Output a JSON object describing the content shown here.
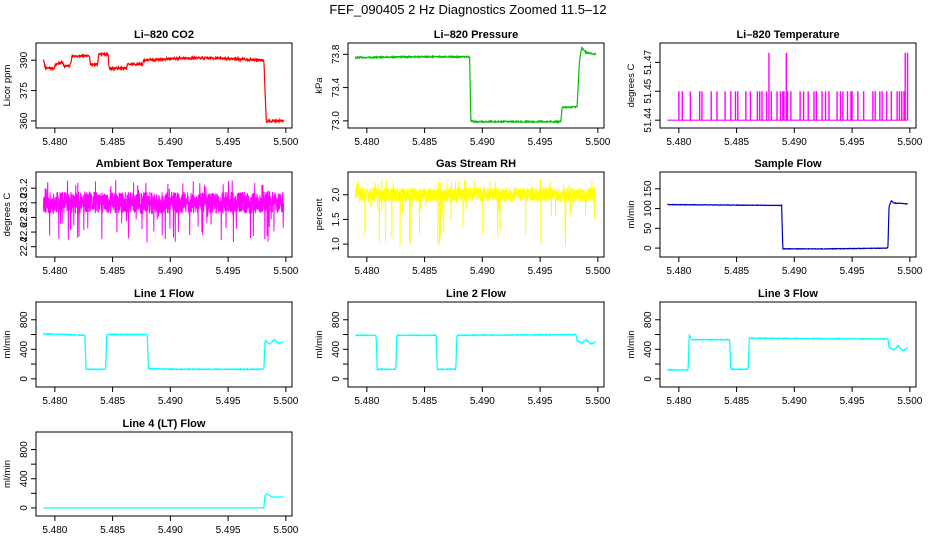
{
  "main_title": "FEF_090405  2 Hz Diagnostics Zoomed 11.5–12",
  "x_ticks": [
    "5.480",
    "5.485",
    "5.490",
    "5.495",
    "5.500"
  ],
  "x_tick_values": [
    5.48,
    5.485,
    5.49,
    5.495,
    5.5
  ],
  "x_range": [
    5.4788,
    5.5001
  ],
  "chart_data": [
    {
      "type": "line",
      "title": "Li–820 CO2",
      "ylabel": "Licor ppm",
      "color": "#ff0000",
      "yrange": [
        358,
        397
      ],
      "ytick_values": [
        360,
        375,
        390
      ],
      "ytick_labels": [
        "360",
        "375",
        "390"
      ],
      "noise": 0.6,
      "points": [
        [
          5.479,
          390
        ],
        [
          5.4792,
          386
        ],
        [
          5.4799,
          386
        ],
        [
          5.4801,
          388
        ],
        [
          5.4807,
          389
        ],
        [
          5.4808,
          387
        ],
        [
          5.4813,
          387
        ],
        [
          5.4815,
          392
        ],
        [
          5.483,
          392
        ],
        [
          5.4831,
          388
        ],
        [
          5.4837,
          388
        ],
        [
          5.4838,
          393
        ],
        [
          5.4846,
          393
        ],
        [
          5.4847,
          386
        ],
        [
          5.4862,
          386
        ],
        [
          5.4863,
          388
        ],
        [
          5.4876,
          388
        ],
        [
          5.4877,
          390
        ],
        [
          5.4912,
          391
        ],
        [
          5.494,
          391
        ],
        [
          5.4981,
          390
        ],
        [
          5.4983,
          360
        ],
        [
          5.4998,
          360
        ]
      ]
    },
    {
      "type": "line",
      "title": "Li–820 Pressure",
      "ylabel": "kPa",
      "color": "#00c000",
      "yrange": [
        72.95,
        73.9
      ],
      "ytick_values": [
        73.0,
        73.4,
        73.8
      ],
      "ytick_labels": [
        "73.0",
        "73.4",
        "73.8"
      ],
      "noise": 0.008,
      "points": [
        [
          5.479,
          73.76
        ],
        [
          5.484,
          73.77
        ],
        [
          5.4889,
          73.77
        ],
        [
          5.489,
          73.0
        ],
        [
          5.4893,
          72.99
        ],
        [
          5.496,
          72.99
        ],
        [
          5.4968,
          72.99
        ],
        [
          5.4969,
          73.16
        ],
        [
          5.4982,
          73.17
        ],
        [
          5.4984,
          73.7
        ],
        [
          5.4986,
          73.88
        ],
        [
          5.499,
          73.82
        ],
        [
          5.4998,
          73.8
        ]
      ]
    },
    {
      "type": "spikes",
      "title": "Li–820 Temperature",
      "ylabel": "degrees C",
      "color": "#ff00ff",
      "yrange": [
        51.4375,
        51.4785
      ],
      "ytick_values": [
        51.44,
        51.455,
        51.47
      ],
      "ytick_labels": [
        "51.44",
        "51.45",
        "51.47"
      ],
      "base": 51.44,
      "spikes": [
        [
          5.48,
          51.455
        ],
        [
          5.4803,
          51.455
        ],
        [
          5.481,
          51.455
        ],
        [
          5.4818,
          51.455
        ],
        [
          5.482,
          51.455
        ],
        [
          5.4828,
          51.455
        ],
        [
          5.4833,
          51.455
        ],
        [
          5.484,
          51.455
        ],
        [
          5.4845,
          51.455
        ],
        [
          5.4849,
          51.455
        ],
        [
          5.4851,
          51.455
        ],
        [
          5.4858,
          51.455
        ],
        [
          5.4862,
          51.455
        ],
        [
          5.4868,
          51.455
        ],
        [
          5.487,
          51.455
        ],
        [
          5.4872,
          51.455
        ],
        [
          5.4876,
          51.455
        ],
        [
          5.4878,
          51.475
        ],
        [
          5.488,
          51.455
        ],
        [
          5.4885,
          51.455
        ],
        [
          5.4888,
          51.455
        ],
        [
          5.489,
          51.455
        ],
        [
          5.4891,
          51.455
        ],
        [
          5.4893,
          51.475
        ],
        [
          5.4894,
          51.455
        ],
        [
          5.4897,
          51.455
        ],
        [
          5.4905,
          51.455
        ],
        [
          5.4908,
          51.455
        ],
        [
          5.4912,
          51.455
        ],
        [
          5.4917,
          51.455
        ],
        [
          5.4919,
          51.455
        ],
        [
          5.4924,
          51.455
        ],
        [
          5.4927,
          51.455
        ],
        [
          5.493,
          51.455
        ],
        [
          5.4937,
          51.455
        ],
        [
          5.494,
          51.455
        ],
        [
          5.4942,
          51.455
        ],
        [
          5.4946,
          51.455
        ],
        [
          5.4949,
          51.455
        ],
        [
          5.495,
          51.455
        ],
        [
          5.4955,
          51.455
        ],
        [
          5.496,
          51.455
        ],
        [
          5.4968,
          51.455
        ],
        [
          5.497,
          51.455
        ],
        [
          5.4974,
          51.455
        ],
        [
          5.4976,
          51.455
        ],
        [
          5.498,
          51.455
        ],
        [
          5.4984,
          51.455
        ],
        [
          5.4989,
          51.455
        ],
        [
          5.4991,
          51.455
        ],
        [
          5.4993,
          51.455
        ],
        [
          5.4995,
          51.455
        ],
        [
          5.4996,
          51.475
        ],
        [
          5.4998,
          51.475
        ]
      ]
    },
    {
      "type": "band",
      "title": "Ambient Box Temperature",
      "ylabel": "degrees C",
      "color": "#ff00ff",
      "yrange": [
        22.3,
        23.38
      ],
      "ytick_values": [
        22.4,
        22.6,
        22.8,
        23.0,
        23.2
      ],
      "ytick_labels": [
        "22.4",
        "22.6",
        "22.8",
        "23.0",
        "23.2"
      ],
      "band": [
        22.85,
        23.15
      ],
      "dips_to": 22.45,
      "peaks_to": 23.32,
      "seed": 11
    },
    {
      "type": "band",
      "title": "Gas Stream RH",
      "ylabel": "percent",
      "color": "#ffff00",
      "yrange": [
        0.8,
        2.4
      ],
      "ytick_values": [
        1.0,
        1.5,
        2.0
      ],
      "ytick_labels": [
        "1.0",
        "1.5",
        "2.0"
      ],
      "band": [
        1.85,
        2.15
      ],
      "dips_to": 0.95,
      "peaks_to": 2.32,
      "seed": 29
    },
    {
      "type": "line",
      "title": "Sample Flow",
      "ylabel": "ml/min",
      "color": "#0000c0",
      "yrange": [
        -15,
        185
      ],
      "ytick_values": [
        0,
        50,
        100,
        150
      ],
      "ytick_labels": [
        "0",
        "50",
        "100",
        "150"
      ],
      "noise": 0.6,
      "points": [
        [
          5.479,
          110
        ],
        [
          5.484,
          109
        ],
        [
          5.4889,
          108
        ],
        [
          5.489,
          -2
        ],
        [
          5.493,
          -2
        ],
        [
          5.4981,
          0
        ],
        [
          5.4982,
          105
        ],
        [
          5.4984,
          120
        ],
        [
          5.4986,
          114
        ],
        [
          5.4998,
          112
        ]
      ]
    },
    {
      "type": "line",
      "title": "Line 1 Flow",
      "ylabel": "ml/min",
      "color": "#00ffff",
      "yrange": [
        -70,
        1000
      ],
      "ytick_values": [
        0,
        200,
        400,
        600,
        800
      ],
      "ytick_labels": [
        "0",
        "",
        "400",
        "",
        "800"
      ],
      "noise": 5,
      "points": [
        [
          5.479,
          610
        ],
        [
          5.4826,
          590
        ],
        [
          5.4827,
          130
        ],
        [
          5.4844,
          130
        ],
        [
          5.4845,
          600
        ],
        [
          5.488,
          600
        ],
        [
          5.4881,
          140
        ],
        [
          5.49,
          130
        ],
        [
          5.4981,
          130
        ],
        [
          5.4982,
          520
        ],
        [
          5.4986,
          470
        ],
        [
          5.499,
          530
        ],
        [
          5.4994,
          480
        ],
        [
          5.4998,
          500
        ]
      ]
    },
    {
      "type": "line",
      "title": "Line 2 Flow",
      "ylabel": "ml/min",
      "color": "#00ffff",
      "yrange": [
        -70,
        1000
      ],
      "ytick_values": [
        0,
        200,
        400,
        600,
        800
      ],
      "ytick_labels": [
        "0",
        "",
        "400",
        "",
        "800"
      ],
      "noise": 5,
      "points": [
        [
          5.479,
          590
        ],
        [
          5.4808,
          590
        ],
        [
          5.4809,
          130
        ],
        [
          5.4825,
          130
        ],
        [
          5.4826,
          590
        ],
        [
          5.486,
          590
        ],
        [
          5.4861,
          130
        ],
        [
          5.4877,
          130
        ],
        [
          5.4878,
          590
        ],
        [
          5.494,
          595
        ],
        [
          5.4981,
          600
        ],
        [
          5.4982,
          520
        ],
        [
          5.4986,
          480
        ],
        [
          5.499,
          530
        ],
        [
          5.4994,
          470
        ],
        [
          5.4998,
          500
        ]
      ]
    },
    {
      "type": "line",
      "title": "Line 3 Flow",
      "ylabel": "ml/min",
      "color": "#00ffff",
      "yrange": [
        -70,
        1000
      ],
      "ytick_values": [
        0,
        200,
        400,
        600,
        800
      ],
      "ytick_labels": [
        "0",
        "",
        "400",
        "",
        "800"
      ],
      "noise": 5,
      "points": [
        [
          5.479,
          120
        ],
        [
          5.4808,
          120
        ],
        [
          5.4809,
          600
        ],
        [
          5.4811,
          530
        ],
        [
          5.4844,
          530
        ],
        [
          5.4845,
          130
        ],
        [
          5.486,
          130
        ],
        [
          5.4861,
          550
        ],
        [
          5.492,
          545
        ],
        [
          5.4981,
          540
        ],
        [
          5.4982,
          430
        ],
        [
          5.4986,
          390
        ],
        [
          5.499,
          450
        ],
        [
          5.4994,
          380
        ],
        [
          5.4998,
          420
        ]
      ]
    },
    {
      "type": "line",
      "title": "Line 4 (LT) Flow",
      "ylabel": "ml/min",
      "color": "#00ffff",
      "yrange": [
        -70,
        1000
      ],
      "ytick_values": [
        0,
        200,
        400,
        600,
        800
      ],
      "ytick_labels": [
        "0",
        "",
        "400",
        "",
        "800"
      ],
      "noise": 1,
      "points": [
        [
          5.479,
          0
        ],
        [
          5.49,
          0
        ],
        [
          5.4981,
          0
        ],
        [
          5.4982,
          170
        ],
        [
          5.4984,
          190
        ],
        [
          5.4988,
          150
        ],
        [
          5.4998,
          150
        ]
      ]
    }
  ]
}
